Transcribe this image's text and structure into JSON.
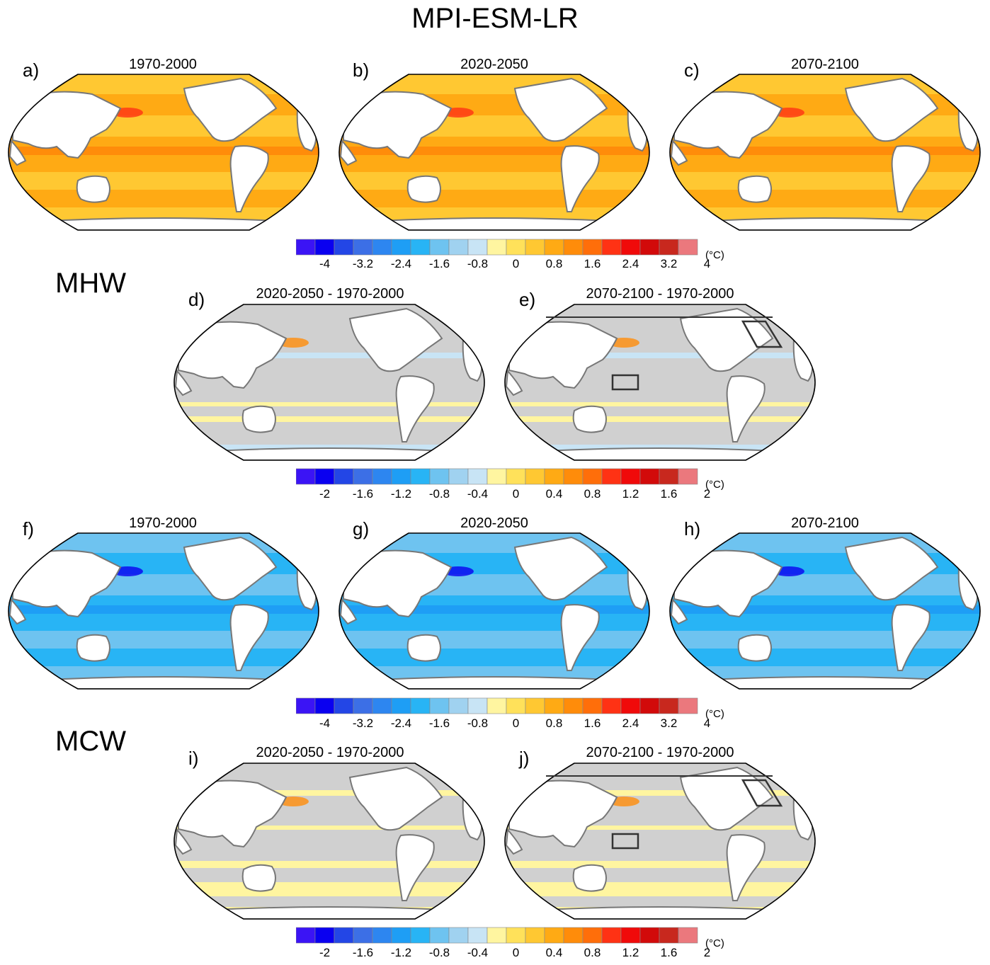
{
  "title": "MPI-ESM-LR",
  "sections": [
    {
      "label": "MHW"
    },
    {
      "label": "MCW"
    }
  ],
  "panels": [
    {
      "letter": "a)",
      "title": "1970-2000",
      "kind": "warm"
    },
    {
      "letter": "b)",
      "title": "2020-2050",
      "kind": "warm"
    },
    {
      "letter": "c)",
      "title": "2070-2100",
      "kind": "warm"
    },
    {
      "letter": "d)",
      "title": "2020-2050 - 1970-2000",
      "kind": "diff",
      "boxes": false
    },
    {
      "letter": "e)",
      "title": "2070-2100 - 1970-2000",
      "kind": "diff",
      "boxes": true
    },
    {
      "letter": "f)",
      "title": "1970-2000",
      "kind": "cold"
    },
    {
      "letter": "g)",
      "title": "2020-2050",
      "kind": "cold"
    },
    {
      "letter": "h)",
      "title": "2070-2100",
      "kind": "cold"
    },
    {
      "letter": "i)",
      "title": "2020-2050 - 1970-2000",
      "kind": "diff2",
      "boxes": false
    },
    {
      "letter": "j)",
      "title": "2070-2100 - 1970-2000",
      "kind": "diff2",
      "boxes": true
    }
  ],
  "colorbars": [
    {
      "unit": "(°C)",
      "ticks": [
        "-4",
        "-3.2",
        "-2.4",
        "-1.6",
        "-0.8",
        "0",
        "0.8",
        "1.6",
        "2.4",
        "3.2",
        "4"
      ]
    },
    {
      "unit": "(°C)",
      "ticks": [
        "-2",
        "-1.6",
        "-1.2",
        "-0.8",
        "-0.4",
        "0",
        "0.4",
        "0.8",
        "1.2",
        "1.6",
        "2"
      ]
    },
    {
      "unit": "(°C)",
      "ticks": [
        "-4",
        "-3.2",
        "-2.4",
        "-1.6",
        "-0.8",
        "0",
        "0.8",
        "1.6",
        "2.4",
        "3.2",
        "4"
      ]
    },
    {
      "unit": "(°C)",
      "ticks": [
        "-2",
        "-1.6",
        "-1.2",
        "-0.8",
        "-0.4",
        "0",
        "0.4",
        "0.8",
        "1.2",
        "1.6",
        "2"
      ]
    }
  ],
  "palette": [
    "#3b14f5",
    "#0a00f0",
    "#2346e6",
    "#3c6fe6",
    "#2d86f0",
    "#1e9ef5",
    "#28b4f5",
    "#6ec3f0",
    "#a0d2f0",
    "#c8e4f5",
    "#fff5a0",
    "#ffe15a",
    "#ffc832",
    "#ffaa14",
    "#ff8c0a",
    "#ff6e0a",
    "#ff3214",
    "#f00a0a",
    "#d20a0a",
    "#c8281e",
    "#eb787d"
  ],
  "colors": {
    "land": "#ffffff",
    "coast": "#777777",
    "insignificant": "#d0d0d0",
    "box": "#333333"
  }
}
